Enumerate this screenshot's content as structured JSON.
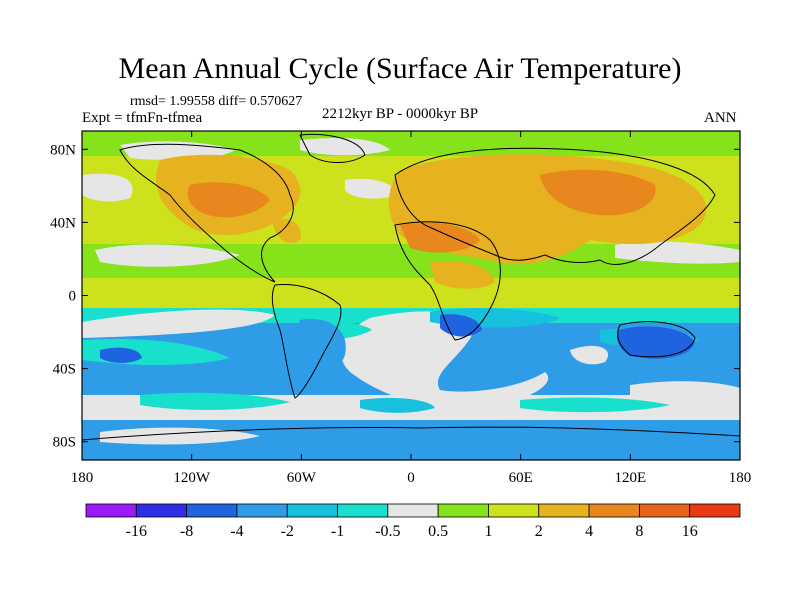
{
  "title": "Mean Annual Cycle (Surface Air Temperature)",
  "stats": "rmsd= 1.99558 diff= 0.570627",
  "experiment": "Expt = tfmFn-tfmea",
  "period": "2212kyr BP - 0000kyr BP",
  "season": "ANN",
  "lat_labels": [
    "80N",
    "40N",
    "0",
    "40S",
    "80S"
  ],
  "lat_values": [
    80,
    40,
    0,
    -40,
    -80
  ],
  "lon_labels": [
    "180",
    "120W",
    "60W",
    "0",
    "60E",
    "120E",
    "180"
  ],
  "lon_values": [
    -180,
    -120,
    -60,
    0,
    60,
    120,
    180
  ],
  "colorbar": {
    "colors": [
      "#9a1bf5",
      "#2e2ee6",
      "#1f63e0",
      "#2f9ce8",
      "#17c1de",
      "#19e0cc",
      "#e6e6e6",
      "#86e21a",
      "#cde21c",
      "#e6b21f",
      "#e9871f",
      "#e8621b",
      "#e83a13"
    ],
    "labels": [
      "-16",
      "-8",
      "-4",
      "-2",
      "-1",
      "-0.5",
      "0.5",
      "1",
      "2",
      "4",
      "8",
      "16"
    ]
  }
}
